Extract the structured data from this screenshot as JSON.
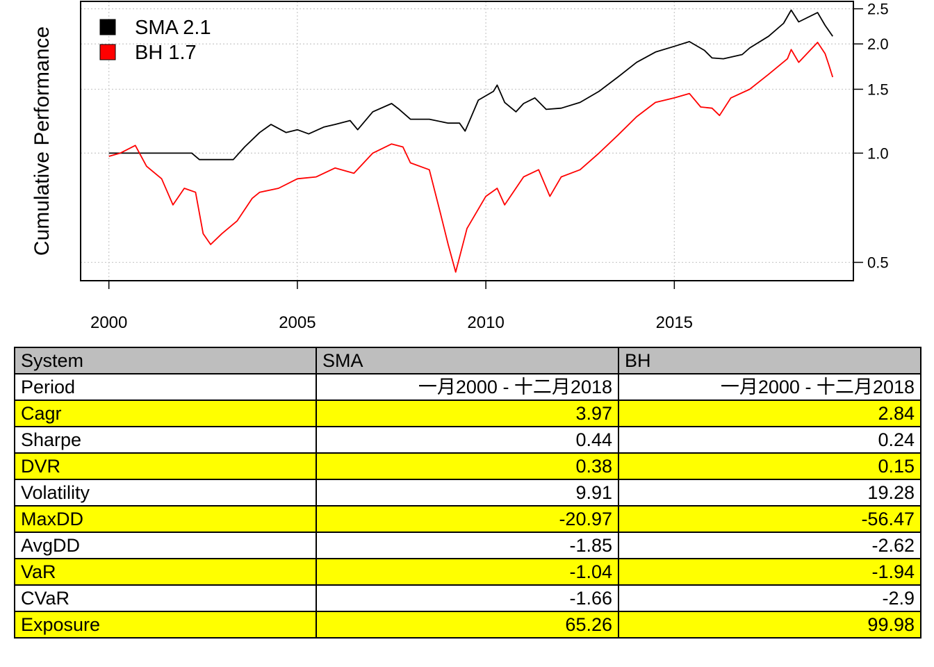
{
  "chart_data": {
    "type": "line",
    "ylabel": "Cumulative Performance",
    "yscale": "log",
    "xlim": [
      1999.25,
      2019.75
    ],
    "ylim": [
      0.445,
      2.62
    ],
    "x_ticks": [
      2000,
      2005,
      2010,
      2015
    ],
    "y_ticks": [
      0.5,
      1.0,
      1.5,
      2.0,
      2.5
    ],
    "y_tick_labels": [
      "0.5",
      "1.0",
      "1.5",
      "2.0",
      "2.5"
    ],
    "grid": true,
    "legend_position": "top-left",
    "series": [
      {
        "name": "SMA 2.1",
        "color": "#000000",
        "points": [
          [
            2000.0,
            1.0
          ],
          [
            2002.2,
            1.0
          ],
          [
            2002.4,
            0.96
          ],
          [
            2003.0,
            0.96
          ],
          [
            2003.3,
            0.96
          ],
          [
            2003.6,
            1.04
          ],
          [
            2004.0,
            1.14
          ],
          [
            2004.3,
            1.2
          ],
          [
            2004.7,
            1.14
          ],
          [
            2005.0,
            1.16
          ],
          [
            2005.3,
            1.13
          ],
          [
            2005.7,
            1.18
          ],
          [
            2006.0,
            1.2
          ],
          [
            2006.4,
            1.23
          ],
          [
            2006.6,
            1.16
          ],
          [
            2007.0,
            1.3
          ],
          [
            2007.5,
            1.37
          ],
          [
            2007.7,
            1.32
          ],
          [
            2008.0,
            1.24
          ],
          [
            2008.5,
            1.24
          ],
          [
            2009.0,
            1.21
          ],
          [
            2009.3,
            1.21
          ],
          [
            2009.45,
            1.15
          ],
          [
            2009.8,
            1.4
          ],
          [
            2010.2,
            1.48
          ],
          [
            2010.3,
            1.54
          ],
          [
            2010.5,
            1.38
          ],
          [
            2010.8,
            1.3
          ],
          [
            2011.0,
            1.37
          ],
          [
            2011.3,
            1.42
          ],
          [
            2011.6,
            1.32
          ],
          [
            2012.0,
            1.33
          ],
          [
            2012.5,
            1.38
          ],
          [
            2013.0,
            1.48
          ],
          [
            2013.5,
            1.62
          ],
          [
            2014.0,
            1.78
          ],
          [
            2014.5,
            1.9
          ],
          [
            2015.0,
            1.97
          ],
          [
            2015.4,
            2.03
          ],
          [
            2015.8,
            1.92
          ],
          [
            2016.0,
            1.83
          ],
          [
            2016.3,
            1.82
          ],
          [
            2016.8,
            1.87
          ],
          [
            2017.0,
            1.95
          ],
          [
            2017.5,
            2.1
          ],
          [
            2017.9,
            2.28
          ],
          [
            2018.1,
            2.48
          ],
          [
            2018.3,
            2.3
          ],
          [
            2018.8,
            2.44
          ],
          [
            2019.0,
            2.25
          ],
          [
            2019.2,
            2.1
          ]
        ]
      },
      {
        "name": "BH 1.7",
        "color": "#ff0000",
        "points": [
          [
            2000.0,
            0.98
          ],
          [
            2000.3,
            1.0
          ],
          [
            2000.7,
            1.05
          ],
          [
            2001.0,
            0.92
          ],
          [
            2001.4,
            0.85
          ],
          [
            2001.7,
            0.72
          ],
          [
            2002.0,
            0.8
          ],
          [
            2002.3,
            0.78
          ],
          [
            2002.5,
            0.6
          ],
          [
            2002.7,
            0.56
          ],
          [
            2003.0,
            0.6
          ],
          [
            2003.4,
            0.65
          ],
          [
            2003.8,
            0.75
          ],
          [
            2004.0,
            0.78
          ],
          [
            2004.5,
            0.8
          ],
          [
            2005.0,
            0.85
          ],
          [
            2005.5,
            0.86
          ],
          [
            2006.0,
            0.91
          ],
          [
            2006.5,
            0.88
          ],
          [
            2007.0,
            1.0
          ],
          [
            2007.5,
            1.06
          ],
          [
            2007.8,
            1.04
          ],
          [
            2008.0,
            0.94
          ],
          [
            2008.5,
            0.9
          ],
          [
            2008.8,
            0.68
          ],
          [
            2009.0,
            0.56
          ],
          [
            2009.2,
            0.47
          ],
          [
            2009.5,
            0.62
          ],
          [
            2010.0,
            0.76
          ],
          [
            2010.3,
            0.8
          ],
          [
            2010.5,
            0.72
          ],
          [
            2011.0,
            0.86
          ],
          [
            2011.4,
            0.9
          ],
          [
            2011.7,
            0.76
          ],
          [
            2012.0,
            0.86
          ],
          [
            2012.5,
            0.9
          ],
          [
            2013.0,
            1.0
          ],
          [
            2013.5,
            1.12
          ],
          [
            2014.0,
            1.26
          ],
          [
            2014.5,
            1.38
          ],
          [
            2015.0,
            1.42
          ],
          [
            2015.4,
            1.46
          ],
          [
            2015.7,
            1.34
          ],
          [
            2016.0,
            1.33
          ],
          [
            2016.2,
            1.27
          ],
          [
            2016.5,
            1.42
          ],
          [
            2017.0,
            1.5
          ],
          [
            2017.5,
            1.65
          ],
          [
            2018.0,
            1.82
          ],
          [
            2018.1,
            1.93
          ],
          [
            2018.3,
            1.78
          ],
          [
            2018.8,
            2.02
          ],
          [
            2019.0,
            1.88
          ],
          [
            2019.1,
            1.75
          ],
          [
            2019.2,
            1.62
          ]
        ]
      }
    ]
  },
  "table": {
    "header": [
      "System",
      "SMA",
      "BH"
    ],
    "rows": [
      {
        "label": "Period",
        "sma": "一月2000 - 十二月2018",
        "bh": "一月2000 - 十二月2018",
        "highlight": false
      },
      {
        "label": "Cagr",
        "sma": "3.97",
        "bh": "2.84",
        "highlight": true
      },
      {
        "label": "Sharpe",
        "sma": "0.44",
        "bh": "0.24",
        "highlight": false
      },
      {
        "label": "DVR",
        "sma": "0.38",
        "bh": "0.15",
        "highlight": true
      },
      {
        "label": "Volatility",
        "sma": "9.91",
        "bh": "19.28",
        "highlight": false
      },
      {
        "label": "MaxDD",
        "sma": "-20.97",
        "bh": "-56.47",
        "highlight": true
      },
      {
        "label": "AvgDD",
        "sma": "-1.85",
        "bh": "-2.62",
        "highlight": false
      },
      {
        "label": "VaR",
        "sma": "-1.04",
        "bh": "-1.94",
        "highlight": true
      },
      {
        "label": "CVaR",
        "sma": "-1.66",
        "bh": "-2.9",
        "highlight": false
      },
      {
        "label": "Exposure",
        "sma": "65.26",
        "bh": "99.98",
        "highlight": true
      }
    ],
    "colors": {
      "header": "#bebebe",
      "highlight": "#ffff00",
      "plain": "#ffffff"
    }
  }
}
